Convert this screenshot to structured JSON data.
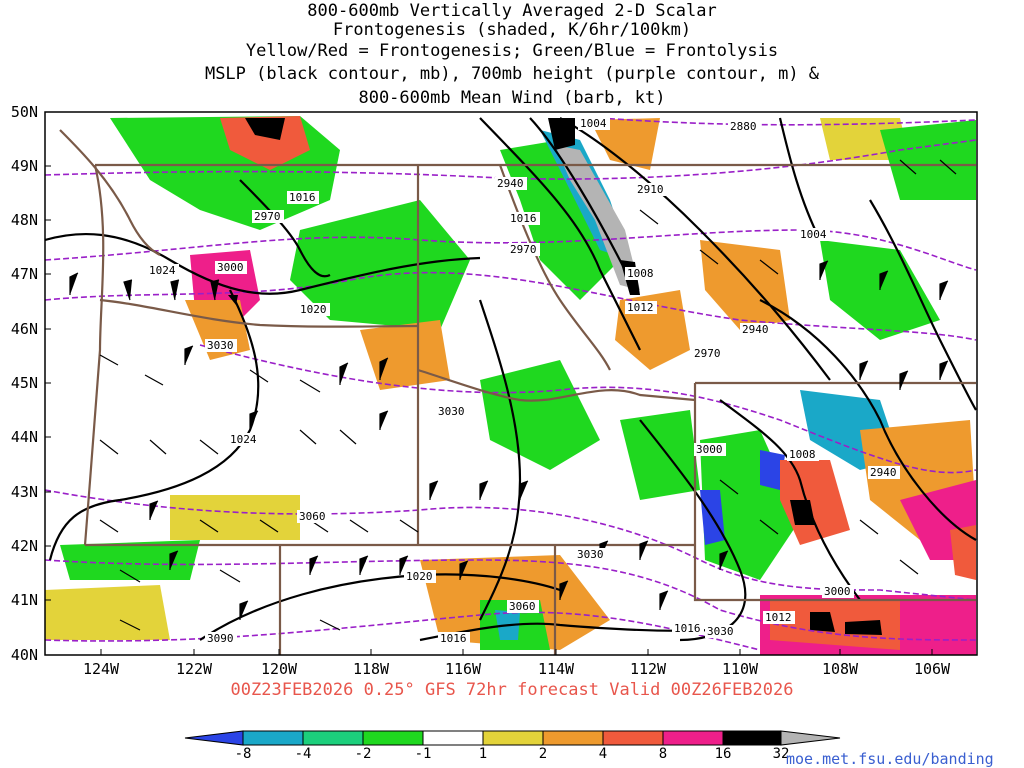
{
  "title": {
    "lines": [
      "800-600mb Vertically Averaged 2-D Scalar",
      "Frontogenesis (shaded, K/6hr/100km)",
      "Yellow/Red = Frontogenesis;  Green/Blue = Frontolysis",
      "MSLP (black contour, mb), 700mb height (purple contour, m) &",
      "800-600mb Mean Wind (barb, kt)"
    ]
  },
  "axes": {
    "lat_labels": [
      "50N",
      "49N",
      "48N",
      "47N",
      "46N",
      "45N",
      "44N",
      "43N",
      "42N",
      "41N",
      "40N"
    ],
    "lon_labels": [
      "124W",
      "122W",
      "120W",
      "118W",
      "116W",
      "114W",
      "112W",
      "110W",
      "108W",
      "106W"
    ]
  },
  "contour_labels": {
    "mslp": [
      "1004",
      "1016",
      "1004",
      "1024",
      "1020",
      "1016",
      "1008",
      "1012",
      "1024",
      "1008",
      "1020",
      "1016",
      "1016",
      "1012"
    ],
    "height": [
      "2880",
      "2940",
      "2910",
      "2970",
      "2970",
      "3000",
      "3030",
      "3030",
      "2940",
      "2970",
      "3000",
      "2940",
      "3060",
      "3030",
      "3060",
      "3000",
      "3030",
      "3090"
    ]
  },
  "valid_text": "00Z23FEB2026 0.25° GFS 72hr forecast Valid 00Z26FEB2026",
  "colorbar": {
    "labels": [
      "-8",
      "-4",
      "-2",
      "-1",
      "1",
      "2",
      "4",
      "8",
      "16",
      "32"
    ],
    "colors": {
      "neg8": "#2b44e6",
      "neg4": "#1aa8c8",
      "neg2": "#1ccf7c",
      "neg1": "#1fd81f",
      "zero": "#ffffff",
      "pos1": "#e3d33a",
      "pos2": "#ee9a2e",
      "pos4": "#f05a3c",
      "pos8": "#ee1f8a",
      "pos16": "#000000",
      "pos32": "#b4b4b4"
    }
  },
  "map_colors": {
    "border": "#7a5a48",
    "mslp": "#000000",
    "height": "#9a20c8"
  },
  "credit": "moe.met.fsu.edu/banding"
}
